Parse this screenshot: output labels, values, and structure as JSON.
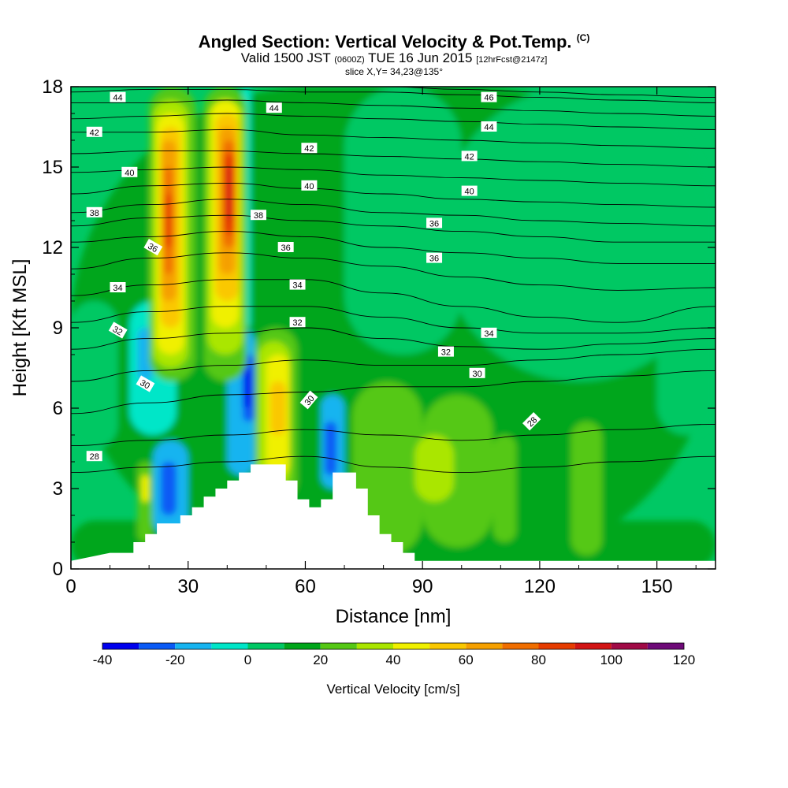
{
  "title": {
    "main": "Angled Section: Vertical Velocity & Pot.Temp.",
    "main_tag": "(C)",
    "valid_prefix": "Valid 1500 JST",
    "valid_z": "(0600Z)",
    "valid_date": "TUE 16 Jun 2015",
    "valid_fcst": "[12hrFcst@2147z]",
    "slice": "slice X,Y= 34,23@135°"
  },
  "chart_data": {
    "type": "heatmap",
    "xlabel": "Distance [nm]",
    "ylabel": "Height [Kft MSL]",
    "xlim": [
      0,
      165
    ],
    "ylim": [
      0,
      18
    ],
    "x_ticks": [
      0,
      30,
      60,
      90,
      120,
      150
    ],
    "y_ticks": [
      0,
      3,
      6,
      9,
      12,
      15,
      18
    ],
    "x_tick_labels": [
      "0",
      "30",
      "60",
      "90",
      "120",
      "150"
    ],
    "y_tick_labels": [
      "0",
      "3",
      "6",
      "9",
      "12",
      "15",
      "18"
    ],
    "colorbar": {
      "label": "Vertical Velocity [cm/s]",
      "levels": [
        -40,
        -30,
        -20,
        -10,
        0,
        10,
        20,
        30,
        40,
        50,
        60,
        70,
        80,
        90,
        100,
        110,
        120
      ],
      "tick_values": [
        -40,
        -20,
        0,
        20,
        40,
        60,
        80,
        100,
        120
      ],
      "tick_labels": [
        "-40",
        "-20",
        "0",
        "20",
        "40",
        "60",
        "80",
        "100",
        "120"
      ],
      "colors": [
        "#0000ee",
        "#0a5af5",
        "#17b4f0",
        "#00e6c8",
        "#00c864",
        "#00a61a",
        "#55c814",
        "#aae600",
        "#f0f000",
        "#fac800",
        "#f5a000",
        "#f06e00",
        "#e63c00",
        "#d21414",
        "#a00a46",
        "#6e0a78"
      ]
    },
    "background_color": "#00c864",
    "cells": [
      {
        "x": [
          0,
          165
        ],
        "y": [
          0,
          18
        ],
        "level": 5
      },
      {
        "x": [
          0,
          165
        ],
        "y": [
          0,
          1.8
        ],
        "level": 5
      },
      {
        "x": [
          95,
          165
        ],
        "y": [
          7,
          18
        ],
        "level": 4
      },
      {
        "x": [
          70,
          100
        ],
        "y": [
          8,
          18
        ],
        "level": 4
      },
      {
        "x": [
          150,
          165
        ],
        "y": [
          5,
          12
        ],
        "level": 4
      },
      {
        "x": [
          0,
          12
        ],
        "y": [
          4.5,
          10
        ],
        "level": 4
      },
      {
        "x": [
          72,
          90
        ],
        "y": [
          0.5,
          7
        ],
        "level": 6
      },
      {
        "x": [
          90,
          108
        ],
        "y": [
          0.8,
          6.5
        ],
        "level": 6
      },
      {
        "x": [
          108,
          114
        ],
        "y": [
          1,
          5
        ],
        "level": 6
      },
      {
        "x": [
          128,
          136
        ],
        "y": [
          0.5,
          5.5
        ],
        "level": 6
      },
      {
        "x": [
          88,
          98
        ],
        "y": [
          2.5,
          5
        ],
        "level": 7
      },
      {
        "x": [
          17,
          21
        ],
        "y": [
          1,
          4
        ],
        "level": 6
      },
      {
        "x": [
          18,
          20
        ],
        "y": [
          2.5,
          3.5
        ],
        "level": 8
      },
      {
        "x": [
          15,
          27
        ],
        "y": [
          5,
          10
        ],
        "level": 3
      },
      {
        "x": [
          17,
          21
        ],
        "y": [
          7,
          9
        ],
        "level": 2
      },
      {
        "x": [
          21,
          30
        ],
        "y": [
          1.2,
          4.8
        ],
        "level": 2
      },
      {
        "x": [
          23,
          27
        ],
        "y": [
          2,
          4
        ],
        "level": 1
      },
      {
        "x": [
          40,
          47
        ],
        "y": [
          3.5,
          9
        ],
        "level": 2
      },
      {
        "x": [
          44,
          47
        ],
        "y": [
          5.5,
          8
        ],
        "level": 1
      },
      {
        "x": [
          44,
          46
        ],
        "y": [
          6,
          7.5
        ],
        "level": 0
      },
      {
        "x": [
          44,
          46
        ],
        "y": [
          9,
          18
        ],
        "level": 3
      },
      {
        "x": [
          64,
          70
        ],
        "y": [
          3,
          6.5
        ],
        "level": 2
      },
      {
        "x": [
          65,
          68
        ],
        "y": [
          3.5,
          5.5
        ],
        "level": 1
      },
      {
        "x": [
          20,
          32
        ],
        "y": [
          7,
          18
        ],
        "level": 6
      },
      {
        "x": [
          21,
          30
        ],
        "y": [
          7.5,
          17.5
        ],
        "level": 7
      },
      {
        "x": [
          22,
          29
        ],
        "y": [
          8,
          17
        ],
        "level": 8
      },
      {
        "x": [
          23,
          28
        ],
        "y": [
          9,
          16.5
        ],
        "level": 9
      },
      {
        "x": [
          23,
          27
        ],
        "y": [
          10,
          16
        ],
        "level": 10
      },
      {
        "x": [
          24,
          26
        ],
        "y": [
          11,
          15
        ],
        "level": 11
      },
      {
        "x": [
          24,
          26
        ],
        "y": [
          12,
          14
        ],
        "level": 12
      },
      {
        "x": [
          34,
          45
        ],
        "y": [
          7,
          18
        ],
        "level": 6
      },
      {
        "x": [
          35,
          44
        ],
        "y": [
          8,
          17.5
        ],
        "level": 7
      },
      {
        "x": [
          36,
          43
        ],
        "y": [
          9,
          17.5
        ],
        "level": 8
      },
      {
        "x": [
          37,
          43
        ],
        "y": [
          10,
          17
        ],
        "level": 9
      },
      {
        "x": [
          38,
          42
        ],
        "y": [
          11,
          16.5
        ],
        "level": 10
      },
      {
        "x": [
          39,
          42
        ],
        "y": [
          12,
          16
        ],
        "level": 11
      },
      {
        "x": [
          39,
          42
        ],
        "y": [
          12.5,
          15.5
        ],
        "level": 12
      },
      {
        "x": [
          40,
          41
        ],
        "y": [
          13,
          15
        ],
        "level": 13
      },
      {
        "x": [
          47,
          58
        ],
        "y": [
          2.5,
          9
        ],
        "level": 6
      },
      {
        "x": [
          48,
          56
        ],
        "y": [
          3,
          8.5
        ],
        "level": 7
      },
      {
        "x": [
          50,
          56
        ],
        "y": [
          3.5,
          8
        ],
        "level": 8
      },
      {
        "x": [
          51,
          55
        ],
        "y": [
          5,
          7
        ],
        "level": 9
      }
    ],
    "terrain_steps": [
      [
        0,
        0.3
      ],
      [
        10,
        0.6
      ],
      [
        16,
        0.6
      ],
      [
        16,
        1.0
      ],
      [
        19,
        1.0
      ],
      [
        19,
        1.3
      ],
      [
        22,
        1.3
      ],
      [
        22,
        1.7
      ],
      [
        28,
        1.7
      ],
      [
        28,
        2.0
      ],
      [
        31,
        2.0
      ],
      [
        31,
        2.3
      ],
      [
        34,
        2.3
      ],
      [
        34,
        2.7
      ],
      [
        37,
        2.7
      ],
      [
        37,
        3.0
      ],
      [
        40,
        3.0
      ],
      [
        40,
        3.3
      ],
      [
        43,
        3.3
      ],
      [
        43,
        3.6
      ],
      [
        46,
        3.6
      ],
      [
        46,
        3.9
      ],
      [
        55,
        3.9
      ],
      [
        55,
        3.3
      ],
      [
        58,
        3.3
      ],
      [
        58,
        2.6
      ],
      [
        61,
        2.6
      ],
      [
        61,
        2.3
      ],
      [
        64,
        2.3
      ],
      [
        64,
        2.6
      ],
      [
        67,
        2.6
      ],
      [
        67,
        3.6
      ],
      [
        73,
        3.6
      ],
      [
        73,
        3.0
      ],
      [
        76,
        3.0
      ],
      [
        76,
        2.0
      ],
      [
        79,
        2.0
      ],
      [
        79,
        1.3
      ],
      [
        82,
        1.3
      ],
      [
        82,
        1.0
      ],
      [
        85,
        1.0
      ],
      [
        85,
        0.6
      ],
      [
        88,
        0.6
      ],
      [
        88,
        0.3
      ],
      [
        165,
        0.3
      ]
    ],
    "theta_levels": [
      28,
      29,
      30,
      31,
      32,
      33,
      34,
      35,
      36,
      37,
      38,
      39,
      40,
      41,
      42,
      43,
      44,
      45,
      46
    ],
    "theta_profile_x": [
      0,
      20,
      40,
      60,
      80,
      100,
      120,
      140,
      165
    ],
    "theta_heights": [
      [
        3.6,
        3.8,
        4.0,
        4.2,
        3.8,
        3.6,
        3.8,
        4.0,
        4.2
      ],
      [
        4.6,
        4.8,
        5.0,
        5.2,
        5.0,
        4.8,
        5.0,
        5.2,
        5.4
      ],
      [
        5.8,
        6.2,
        6.5,
        6.6,
        6.8,
        6.8,
        7.0,
        7.2,
        7.4
      ],
      [
        7.0,
        7.4,
        7.6,
        7.8,
        7.6,
        7.6,
        7.8,
        8.0,
        8.2
      ],
      [
        8.2,
        8.6,
        8.8,
        9.0,
        8.6,
        8.3,
        8.2,
        8.4,
        8.6
      ],
      [
        9.2,
        9.6,
        9.8,
        9.8,
        9.4,
        9.0,
        8.8,
        8.8,
        9.0
      ],
      [
        10.2,
        10.6,
        10.8,
        10.8,
        10.3,
        9.8,
        9.4,
        9.2,
        9.8
      ],
      [
        11.2,
        11.6,
        11.8,
        11.6,
        11.3,
        10.9,
        10.6,
        10.4,
        10.5
      ],
      [
        12.2,
        12.4,
        12.6,
        12.4,
        12.0,
        11.8,
        11.6,
        11.4,
        11.4
      ],
      [
        12.8,
        13.1,
        13.2,
        13.0,
        12.8,
        12.6,
        12.4,
        12.2,
        12.2
      ],
      [
        13.3,
        13.6,
        13.8,
        13.6,
        13.3,
        13.2,
        13.0,
        12.9,
        12.8
      ],
      [
        14.0,
        14.3,
        14.4,
        14.2,
        14.0,
        13.8,
        13.7,
        13.6,
        13.5
      ],
      [
        14.8,
        14.9,
        15.0,
        14.9,
        14.7,
        14.6,
        14.5,
        14.4,
        14.3
      ],
      [
        15.5,
        15.6,
        15.6,
        15.5,
        15.4,
        15.3,
        15.2,
        15.1,
        15.0
      ],
      [
        16.3,
        16.3,
        16.4,
        16.2,
        16.1,
        16.0,
        15.9,
        15.8,
        15.7
      ],
      [
        16.8,
        16.9,
        17.0,
        16.9,
        16.8,
        16.7,
        16.6,
        16.5,
        16.4
      ],
      [
        17.4,
        17.4,
        17.5,
        17.4,
        17.3,
        17.2,
        17.1,
        17.0,
        16.9
      ],
      [
        17.8,
        17.9,
        17.9,
        17.8,
        17.8,
        17.7,
        17.6,
        17.5,
        17.4
      ],
      [
        18.0,
        18.0,
        18.0,
        18.0,
        18.0,
        17.9,
        17.8,
        17.7,
        17.6
      ]
    ],
    "theta_label_positions": [
      {
        "text": "28",
        "x": 6,
        "y": 4.2,
        "angle": 0
      },
      {
        "text": "28",
        "x": 118,
        "y": 5.5,
        "angle": -45
      },
      {
        "text": "30",
        "x": 19,
        "y": 6.9,
        "angle": 30
      },
      {
        "text": "30",
        "x": 61,
        "y": 6.3,
        "angle": -50
      },
      {
        "text": "30",
        "x": 104,
        "y": 7.3,
        "angle": 0
      },
      {
        "text": "32",
        "x": 12,
        "y": 8.9,
        "angle": 30
      },
      {
        "text": "32",
        "x": 58,
        "y": 9.2,
        "angle": 0
      },
      {
        "text": "32",
        "x": 96,
        "y": 8.1,
        "angle": 0
      },
      {
        "text": "34",
        "x": 12,
        "y": 10.5,
        "angle": 0
      },
      {
        "text": "34",
        "x": 58,
        "y": 10.6,
        "angle": 0
      },
      {
        "text": "34",
        "x": 107,
        "y": 8.8,
        "angle": 0
      },
      {
        "text": "36",
        "x": 21,
        "y": 12.0,
        "angle": 30
      },
      {
        "text": "36",
        "x": 55,
        "y": 12.0,
        "angle": 0
      },
      {
        "text": "36",
        "x": 93,
        "y": 11.6,
        "angle": 0
      },
      {
        "text": "36",
        "x": 93,
        "y": 12.9,
        "angle": 0
      },
      {
        "text": "38",
        "x": 6,
        "y": 13.3,
        "angle": 0
      },
      {
        "text": "38",
        "x": 48,
        "y": 13.2,
        "angle": 0
      },
      {
        "text": "40",
        "x": 15,
        "y": 14.8,
        "angle": 0
      },
      {
        "text": "40",
        "x": 61,
        "y": 14.3,
        "angle": 0
      },
      {
        "text": "40",
        "x": 102,
        "y": 14.1,
        "angle": 0
      },
      {
        "text": "42",
        "x": 6,
        "y": 16.3,
        "angle": 0
      },
      {
        "text": "42",
        "x": 61,
        "y": 15.7,
        "angle": 0
      },
      {
        "text": "42",
        "x": 102,
        "y": 15.4,
        "angle": 0
      },
      {
        "text": "44",
        "x": 12,
        "y": 17.6,
        "angle": 0
      },
      {
        "text": "44",
        "x": 52,
        "y": 17.2,
        "angle": 0
      },
      {
        "text": "44",
        "x": 107,
        "y": 16.5,
        "angle": 0
      },
      {
        "text": "46",
        "x": 107,
        "y": 17.6,
        "angle": 0
      }
    ]
  }
}
